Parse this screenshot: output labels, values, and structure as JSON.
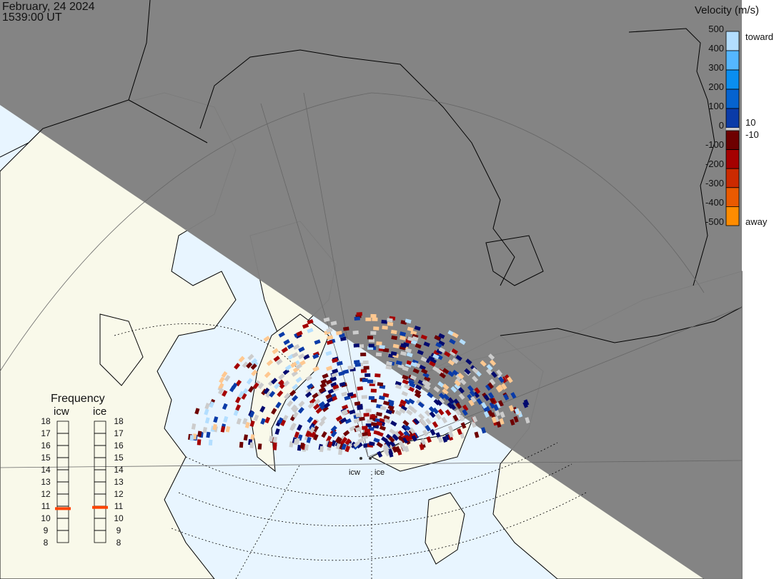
{
  "header": {
    "date": "February, 24 2024",
    "time": "1539:00 UT"
  },
  "colorbar": {
    "title": "Velocity (m/s)",
    "ticks": [
      "500",
      "400",
      "300",
      "200",
      "100",
      "0",
      "-100",
      "-200",
      "-300",
      "-400",
      "-500"
    ],
    "toward_label": "toward",
    "away_label": "away",
    "gap_upper": "10",
    "gap_lower": "-10",
    "colors": [
      "#b3deff",
      "#55b7ff",
      "#0a8ef0",
      "#0563cf",
      "#0a3ba8",
      "#020a6e",
      "#cccccc",
      "#6e0000",
      "#a50000",
      "#cc2a00",
      "#ea5a00",
      "#ff8c00",
      "#ffc890"
    ]
  },
  "frequency": {
    "title": "Frequency",
    "radars": [
      {
        "name": "icw",
        "value_mhz": 10.8
      },
      {
        "name": "ice",
        "value_mhz": 10.9
      }
    ],
    "ticks": [
      "18",
      "17",
      "16",
      "15",
      "14",
      "13",
      "12",
      "11",
      "10",
      "9",
      "8"
    ],
    "marker_color": "#ff4400"
  },
  "radars": [
    {
      "label": "icw"
    },
    {
      "label": "ice"
    }
  ],
  "map_colors": {
    "night": "#808080",
    "land": "#f9f9ea",
    "ocean": "#e8f5ff"
  }
}
